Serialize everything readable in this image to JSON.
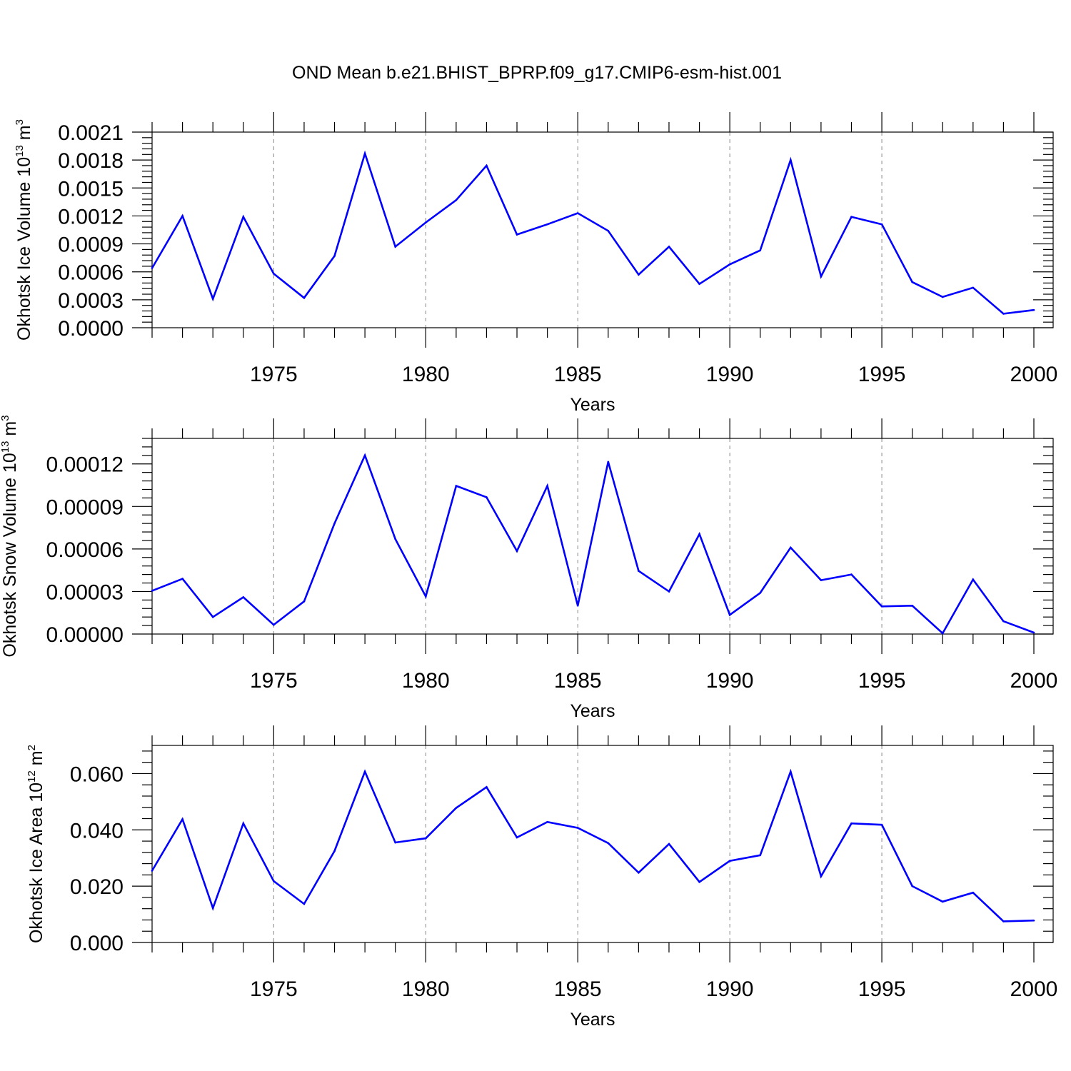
{
  "title": "OND Mean b.e21.BHIST_BPRP.f09_g17.CMIP6-esm-hist.001",
  "colors": {
    "series": "#0000ff",
    "axis": "#000000",
    "grid": "#888888"
  },
  "chart_data": [
    {
      "type": "line",
      "ylabel": {
        "main": "Okhotsk Ice Volume 10",
        "exp": "13",
        "unit": " m",
        "unit_exp": "3"
      },
      "xlabel": "Years",
      "xlim": [
        1971,
        2000
      ],
      "ylim": [
        0,
        0.0021
      ],
      "yticks": [
        0.0,
        0.0003,
        0.0006,
        0.0009,
        0.0012,
        0.0015,
        0.0018,
        0.0021
      ],
      "ytick_labels": [
        "0.0000",
        "0.0003",
        "0.0006",
        "0.0009",
        "0.0012",
        "0.0015",
        "0.0018",
        "0.0021"
      ],
      "xticks": [
        1975,
        1980,
        1985,
        1990,
        1995,
        2000
      ],
      "xtick_labels": [
        "1975",
        "1980",
        "1985",
        "1990",
        "1995",
        "2000"
      ],
      "x": [
        1971,
        1972,
        1973,
        1974,
        1975,
        1976,
        1977,
        1978,
        1979,
        1980,
        1981,
        1982,
        1983,
        1984,
        1985,
        1986,
        1987,
        1988,
        1989,
        1990,
        1991,
        1992,
        1993,
        1994,
        1995,
        1996,
        1997,
        1998,
        1999,
        2000
      ],
      "values": [
        0.00064,
        0.0012,
        0.00031,
        0.00119,
        0.00058,
        0.00032,
        0.00077,
        0.00187,
        0.00087,
        0.00113,
        0.00137,
        0.00174,
        0.001,
        0.00111,
        0.00123,
        0.00104,
        0.00057,
        0.00087,
        0.00047,
        0.00068,
        0.00083,
        0.0018,
        0.00055,
        0.00119,
        0.00111,
        0.00049,
        0.00033,
        0.00043,
        0.00015,
        0.00019
      ]
    },
    {
      "type": "line",
      "ylabel": {
        "main": "Okhotsk Snow Volume 10",
        "exp": "13",
        "unit": " m",
        "unit_exp": "3"
      },
      "xlabel": "Years",
      "xlim": [
        1971,
        2000
      ],
      "ylim": [
        0,
        0.000138
      ],
      "yticks": [
        0.0,
        3e-05,
        6e-05,
        9e-05,
        0.00012
      ],
      "ytick_labels": [
        "0.00000",
        "0.00003",
        "0.00006",
        "0.00009",
        "0.00012"
      ],
      "xticks": [
        1975,
        1980,
        1985,
        1990,
        1995,
        2000
      ],
      "xtick_labels": [
        "1975",
        "1980",
        "1985",
        "1990",
        "1995",
        "2000"
      ],
      "x": [
        1971,
        1972,
        1973,
        1974,
        1975,
        1976,
        1977,
        1978,
        1979,
        1980,
        1981,
        1982,
        1983,
        1984,
        1985,
        1986,
        1987,
        1988,
        1989,
        1990,
        1991,
        1992,
        1993,
        1994,
        1995,
        1996,
        1997,
        1998,
        1999,
        2000
      ],
      "values": [
        3.05e-05,
        3.9e-05,
        1.2e-05,
        2.6e-05,
        6.5e-06,
        2.3e-05,
        7.8e-05,
        0.000126,
        6.7e-05,
        2.65e-05,
        0.0001045,
        9.65e-05,
        5.85e-05,
        0.0001045,
        2e-05,
        0.0001215,
        4.45e-05,
        3e-05,
        7.05e-05,
        1.35e-05,
        2.9e-05,
        6.1e-05,
        3.8e-05,
        4.2e-05,
        1.95e-05,
        2e-05,
        5e-07,
        3.85e-05,
        9e-06,
        1e-06
      ]
    },
    {
      "type": "line",
      "ylabel": {
        "main": "Okhotsk Ice Area 10",
        "exp": "12",
        "unit": " m",
        "unit_exp": "2"
      },
      "xlabel": "Years",
      "xlim": [
        1971,
        2000
      ],
      "ylim": [
        0,
        0.07
      ],
      "yticks": [
        0.0,
        0.02,
        0.04,
        0.06
      ],
      "ytick_labels": [
        "0.000",
        "0.020",
        "0.040",
        "0.060"
      ],
      "xticks": [
        1975,
        1980,
        1985,
        1990,
        1995,
        2000
      ],
      "xtick_labels": [
        "1975",
        "1980",
        "1985",
        "1990",
        "1995",
        "2000"
      ],
      "x": [
        1971,
        1972,
        1973,
        1974,
        1975,
        1976,
        1977,
        1978,
        1979,
        1980,
        1981,
        1982,
        1983,
        1984,
        1985,
        1986,
        1987,
        1988,
        1989,
        1990,
        1991,
        1992,
        1993,
        1994,
        1995,
        1996,
        1997,
        1998,
        1999,
        2000
      ],
      "values": [
        0.0255,
        0.0438,
        0.0122,
        0.0423,
        0.0218,
        0.0137,
        0.0325,
        0.0607,
        0.0355,
        0.037,
        0.0478,
        0.0552,
        0.0373,
        0.0428,
        0.0407,
        0.0353,
        0.0248,
        0.035,
        0.0215,
        0.029,
        0.031,
        0.0607,
        0.0235,
        0.0423,
        0.0418,
        0.02,
        0.0145,
        0.0177,
        0.0075,
        0.0078
      ]
    }
  ]
}
